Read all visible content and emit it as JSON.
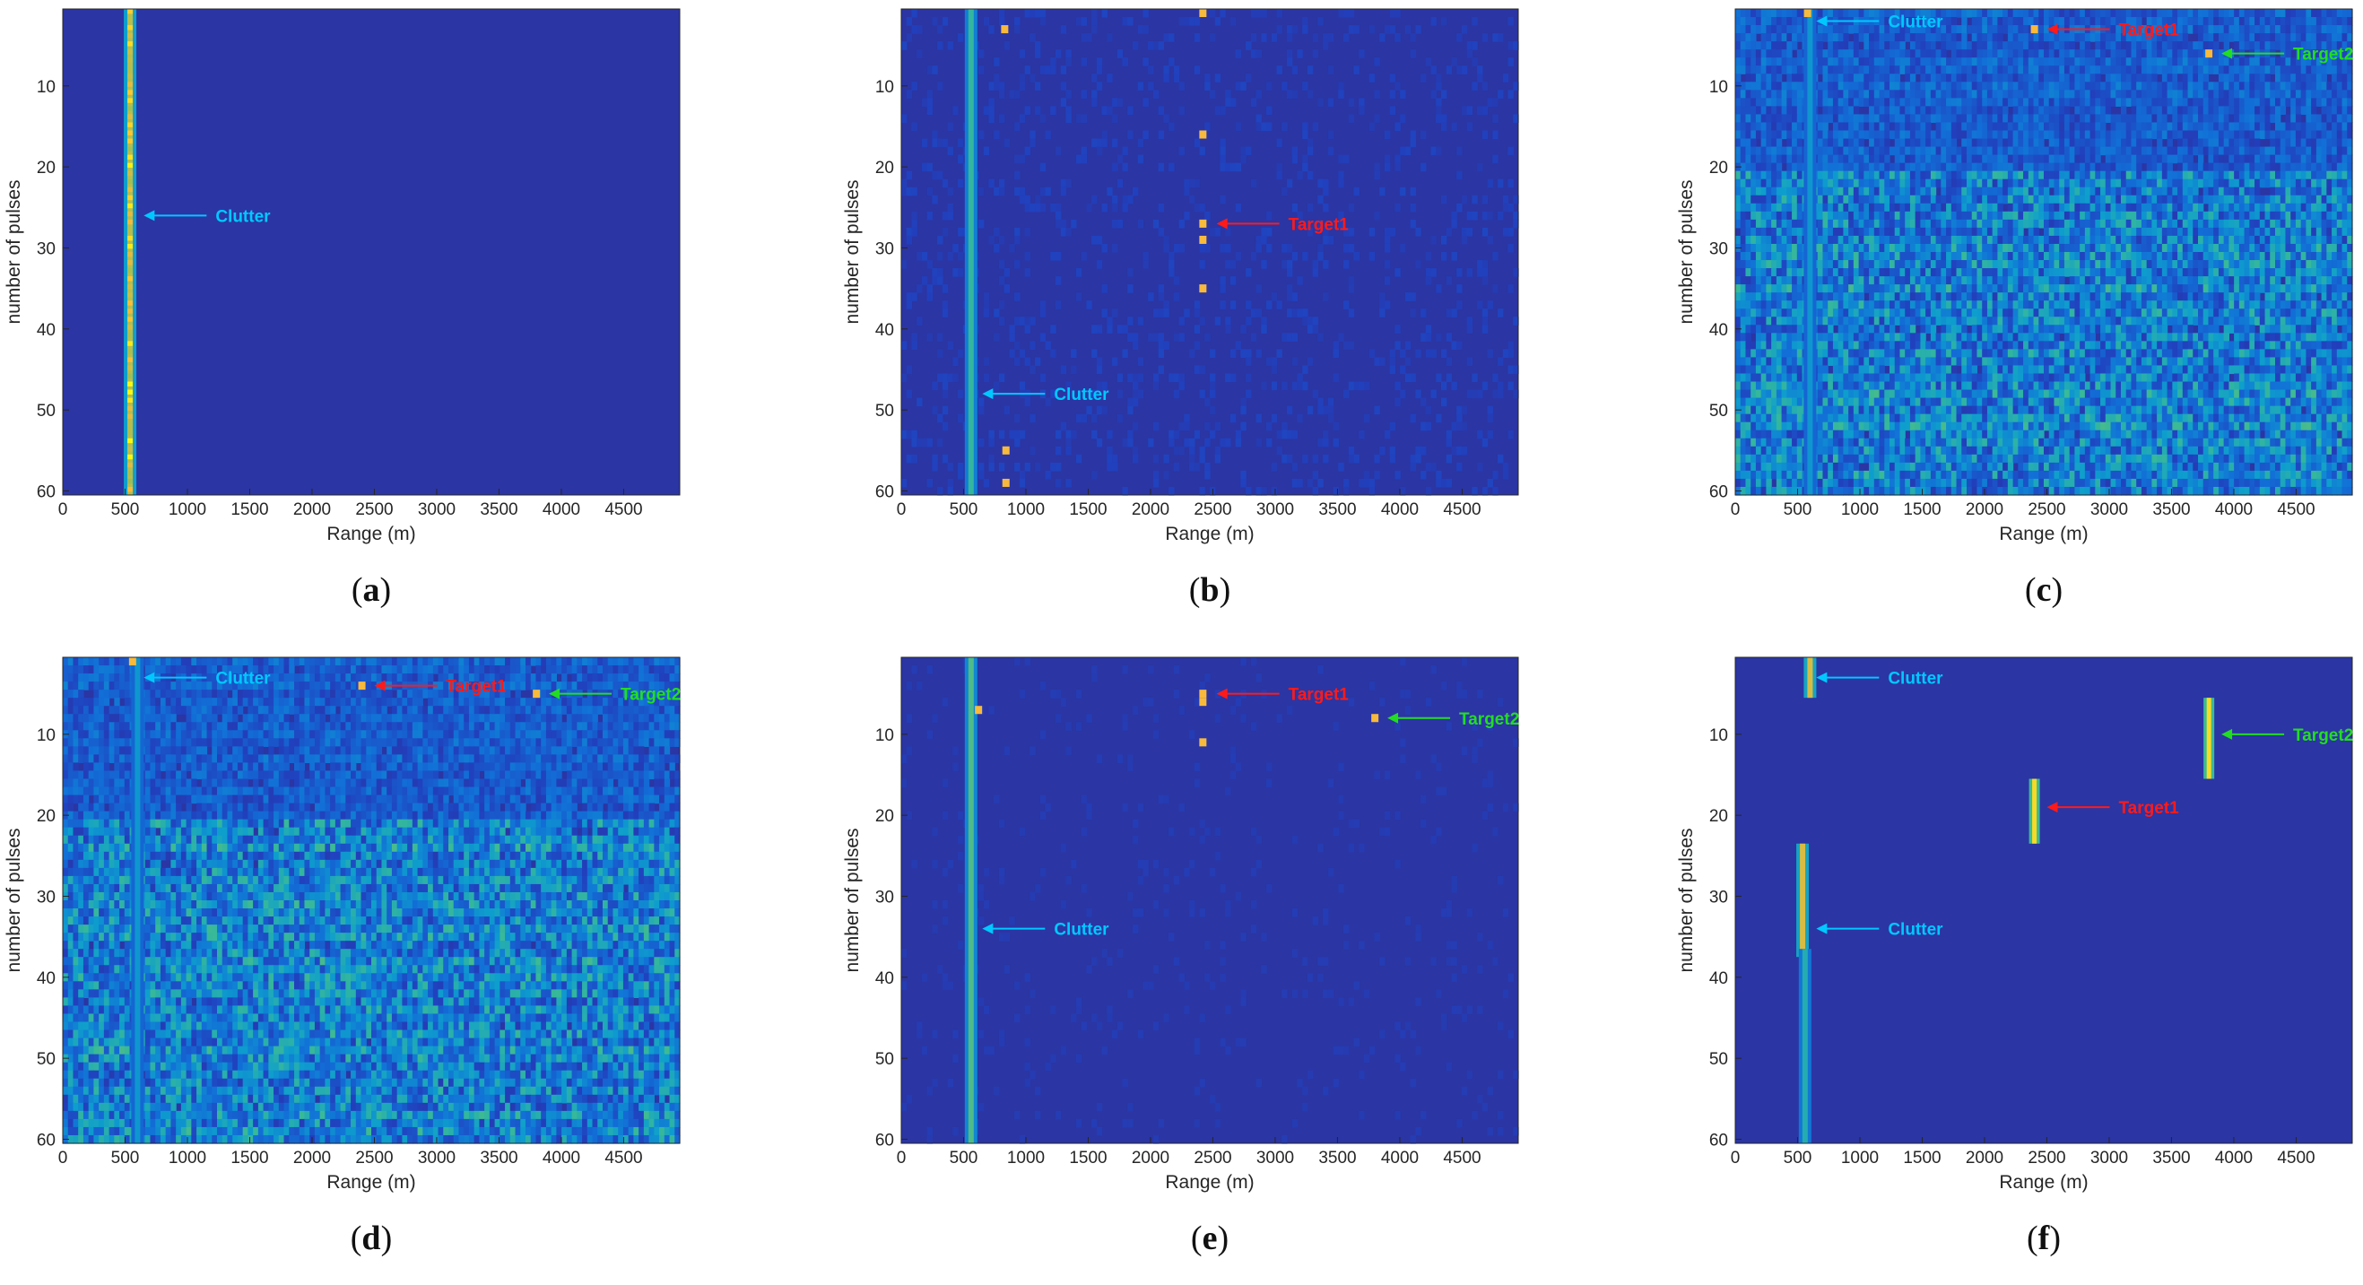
{
  "chart_data": [
    {
      "type": "heatmap",
      "caption": "a",
      "title": "",
      "xlabel": "Range (m)",
      "ylabel": "number of pulses",
      "xlim": [
        0,
        4950
      ],
      "ylim": [
        1,
        60
      ],
      "xticks": [
        0,
        500,
        1000,
        1500,
        2000,
        2500,
        3000,
        3500,
        4000,
        4500
      ],
      "yticks": [
        10,
        20,
        30,
        40,
        50,
        60
      ],
      "noise_level": 0.0,
      "clutter_lines": [
        {
          "x": 540,
          "pulses": [
            1,
            60
          ],
          "intensity": 0.8
        }
      ],
      "point_returns": [],
      "annotations": [
        {
          "text": "Clutter",
          "color": "#00c8ff",
          "x": 650,
          "y": 26
        }
      ]
    },
    {
      "type": "heatmap",
      "caption": "b",
      "title": "",
      "xlabel": "Range (m)",
      "ylabel": "number of pulses",
      "xlim": [
        0,
        4950
      ],
      "ylim": [
        1,
        60
      ],
      "xticks": [
        0,
        500,
        1000,
        1500,
        2000,
        2500,
        3000,
        3500,
        4000,
        4500
      ],
      "yticks": [
        10,
        20,
        30,
        40,
        50,
        60
      ],
      "noise_level": 0.06,
      "clutter_lines": [
        {
          "x": 560,
          "pulses": [
            1,
            60
          ],
          "intensity": 0.6
        }
      ],
      "point_returns": [
        {
          "x": 830,
          "y": 3
        },
        {
          "x": 2420,
          "y": 1
        },
        {
          "x": 2420,
          "y": 16
        },
        {
          "x": 2420,
          "y": 27
        },
        {
          "x": 2420,
          "y": 29
        },
        {
          "x": 2420,
          "y": 35
        },
        {
          "x": 840,
          "y": 55
        },
        {
          "x": 840,
          "y": 59
        }
      ],
      "annotations": [
        {
          "text": "Target1",
          "color": "#ff1a1a",
          "x": 2530,
          "y": 27
        },
        {
          "text": "Clutter",
          "color": "#00c8ff",
          "x": 650,
          "y": 48
        }
      ]
    },
    {
      "type": "heatmap",
      "caption": "c",
      "title": "",
      "xlabel": "Range (m)",
      "ylabel": "number of pulses",
      "xlim": [
        0,
        4950
      ],
      "ylim": [
        1,
        60
      ],
      "xticks": [
        0,
        500,
        1000,
        1500,
        2000,
        2500,
        3000,
        3500,
        4000,
        4500
      ],
      "yticks": [
        10,
        20,
        30,
        40,
        50,
        60
      ],
      "noise_level": 0.45,
      "clutter_lines": [
        {
          "x": 600,
          "pulses": [
            1,
            60
          ],
          "intensity": 0.45
        }
      ],
      "point_returns": [
        {
          "x": 2400,
          "y": 3
        },
        {
          "x": 3800,
          "y": 6
        },
        {
          "x": 580,
          "y": 1
        }
      ],
      "annotations": [
        {
          "text": "Clutter",
          "color": "#00c8ff",
          "x": 650,
          "y": 2
        },
        {
          "text": "Target1",
          "color": "#ff1a1a",
          "x": 2500,
          "y": 3
        },
        {
          "text": "Target2",
          "color": "#22dd22",
          "x": 3900,
          "y": 6
        }
      ]
    },
    {
      "type": "heatmap",
      "caption": "d",
      "title": "",
      "xlabel": "Range (m)",
      "ylabel": "number of pulses",
      "xlim": [
        0,
        4950
      ],
      "ylim": [
        1,
        60
      ],
      "xticks": [
        0,
        500,
        1000,
        1500,
        2000,
        2500,
        3000,
        3500,
        4000,
        4500
      ],
      "yticks": [
        10,
        20,
        30,
        40,
        50,
        60
      ],
      "noise_level": 0.45,
      "clutter_lines": [
        {
          "x": 600,
          "pulses": [
            1,
            60
          ],
          "intensity": 0.45
        }
      ],
      "point_returns": [
        {
          "x": 2400,
          "y": 4
        },
        {
          "x": 3800,
          "y": 5
        },
        {
          "x": 560,
          "y": 1
        }
      ],
      "annotations": [
        {
          "text": "Clutter",
          "color": "#00c8ff",
          "x": 650,
          "y": 3
        },
        {
          "text": "Target1",
          "color": "#ff1a1a",
          "x": 2500,
          "y": 4
        },
        {
          "text": "Target2",
          "color": "#22dd22",
          "x": 3900,
          "y": 5
        }
      ]
    },
    {
      "type": "heatmap",
      "caption": "e",
      "title": "",
      "xlabel": "Range (m)",
      "ylabel": "number of pulses",
      "xlim": [
        0,
        4950
      ],
      "ylim": [
        1,
        60
      ],
      "xticks": [
        0,
        500,
        1000,
        1500,
        2000,
        2500,
        3000,
        3500,
        4000,
        4500
      ],
      "yticks": [
        10,
        20,
        30,
        40,
        50,
        60
      ],
      "noise_level": 0.03,
      "clutter_lines": [
        {
          "x": 560,
          "pulses": [
            1,
            60
          ],
          "intensity": 0.65
        }
      ],
      "point_returns": [
        {
          "x": 2420,
          "y": 5
        },
        {
          "x": 2420,
          "y": 6
        },
        {
          "x": 3800,
          "y": 8
        },
        {
          "x": 2420,
          "y": 11
        },
        {
          "x": 620,
          "y": 7
        }
      ],
      "annotations": [
        {
          "text": "Target1",
          "color": "#ff1a1a",
          "x": 2530,
          "y": 5
        },
        {
          "text": "Target2",
          "color": "#22dd22",
          "x": 3900,
          "y": 8
        },
        {
          "text": "Clutter",
          "color": "#00c8ff",
          "x": 650,
          "y": 34
        }
      ]
    },
    {
      "type": "heatmap",
      "caption": "f",
      "title": "",
      "xlabel": "Range (m)",
      "ylabel": "number of pulses",
      "xlim": [
        0,
        4950
      ],
      "ylim": [
        1,
        60
      ],
      "xticks": [
        0,
        500,
        1000,
        1500,
        2000,
        2500,
        3000,
        3500,
        4000,
        4500
      ],
      "yticks": [
        10,
        20,
        30,
        40,
        50,
        60
      ],
      "noise_level": 0.02,
      "clutter_lines": [
        {
          "x": 600,
          "pulses": [
            1,
            5
          ],
          "intensity": 0.85
        },
        {
          "x": 540,
          "pulses": [
            24,
            37
          ],
          "intensity": 0.85
        },
        {
          "x": 560,
          "pulses": [
            37,
            60
          ],
          "intensity": 0.55
        }
      ],
      "target_lines": [
        {
          "x": 3800,
          "pulses": [
            6,
            15
          ]
        },
        {
          "x": 2400,
          "pulses": [
            16,
            23
          ]
        }
      ],
      "point_returns": [],
      "annotations": [
        {
          "text": "Clutter",
          "color": "#00c8ff",
          "x": 650,
          "y": 3
        },
        {
          "text": "Target2",
          "color": "#22dd22",
          "x": 3900,
          "y": 10
        },
        {
          "text": "Target1",
          "color": "#ff1a1a",
          "x": 2500,
          "y": 19
        },
        {
          "text": "Clutter",
          "color": "#00c8ff",
          "x": 650,
          "y": 34
        }
      ]
    }
  ]
}
